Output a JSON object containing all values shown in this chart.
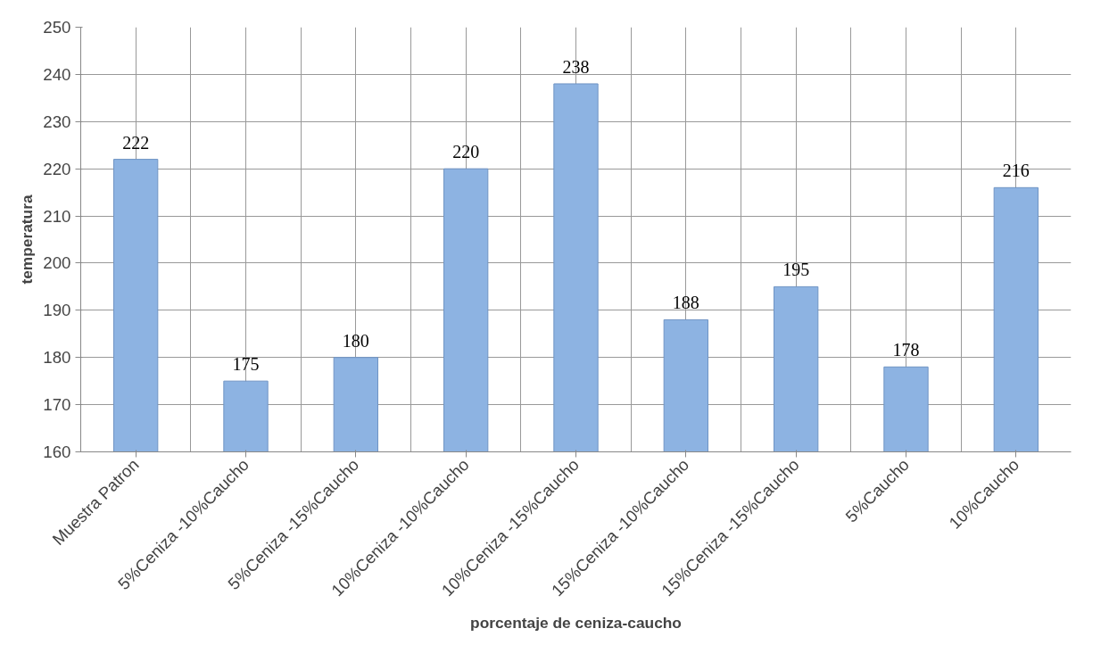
{
  "chart_data": {
    "type": "bar",
    "xlabel": "porcentaje de ceniza-caucho",
    "ylabel": "temperatura",
    "categories": [
      "Muestra Patron",
      "5%Ceniza -10%Caucho",
      "5%Ceniza -15%Caucho",
      "10%Ceniza -10%Caucho",
      "10%Ceniza -15%Caucho",
      "15%Ceniza -10%Caucho",
      "15%Ceniza -15%Caucho",
      "5%Caucho",
      "10%Caucho"
    ],
    "values": [
      222,
      175,
      180,
      220,
      238,
      188,
      195,
      178,
      216
    ],
    "color": "#8db3e2",
    "ylim": [
      160,
      250
    ],
    "yticks": [
      160,
      170,
      180,
      190,
      200,
      210,
      220,
      230,
      240,
      250
    ],
    "grid": true,
    "data_labels": true
  }
}
